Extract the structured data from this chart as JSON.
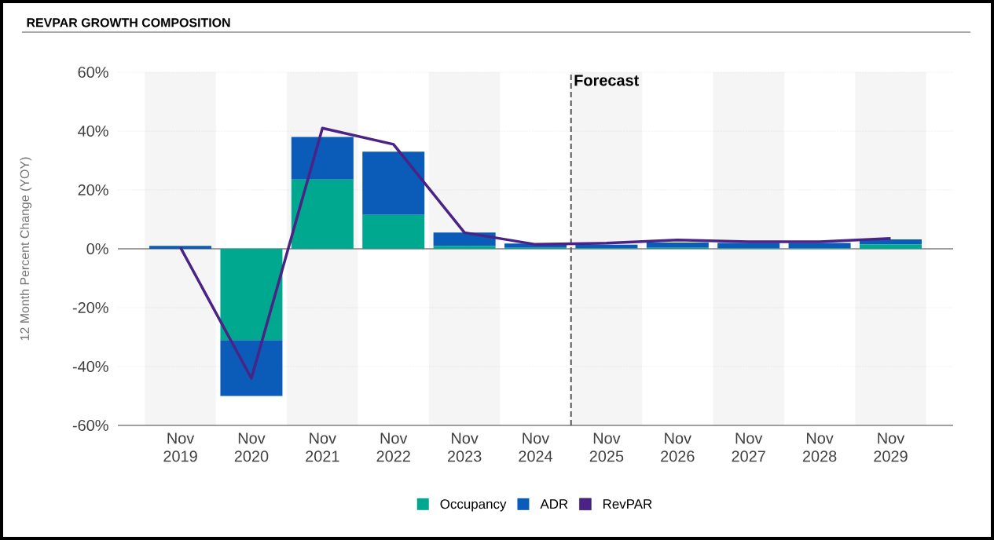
{
  "chart_data": {
    "type": "bar",
    "title": "REVPAR GROWTH COMPOSITION",
    "ylabel": "12 Month Percent Change (YOY)",
    "categories": [
      "Nov 2019",
      "Nov 2020",
      "Nov 2021",
      "Nov 2022",
      "Nov 2023",
      "Nov 2024",
      "Nov 2025",
      "Nov 2026",
      "Nov 2027",
      "Nov 2028",
      "Nov 2029"
    ],
    "stacked": true,
    "series": [
      {
        "name": "Occupancy",
        "color": "#00a88f",
        "values": [
          0,
          -31,
          23.5,
          11.5,
          1,
          0.3,
          0.2,
          0.3,
          0.2,
          0.2,
          1.5
        ]
      },
      {
        "name": "ADR",
        "color": "#0a5cb8",
        "values": [
          1,
          -19,
          14.5,
          21.5,
          4.5,
          1.5,
          1.2,
          1.8,
          1.8,
          1.8,
          1.7
        ]
      },
      {
        "name": "RevPAR",
        "type": "line",
        "color": "#4b2285",
        "values": [
          0.5,
          -44,
          41,
          35.5,
          5.5,
          1.5,
          1.9,
          3,
          2.4,
          2.4,
          3.5
        ]
      }
    ],
    "ylim": [
      -60,
      60
    ],
    "yticks": [
      {
        "value": -60,
        "label": "-60%"
      },
      {
        "value": -40,
        "label": "-40%"
      },
      {
        "value": -20,
        "label": "-20%"
      },
      {
        "value": 0,
        "label": "0%"
      },
      {
        "value": 20,
        "label": "20%"
      },
      {
        "value": 40,
        "label": "40%"
      },
      {
        "value": 60,
        "label": "60%"
      }
    ],
    "grid": "y",
    "legend": "bottom",
    "bands": [
      {
        "axis": "x",
        "from": "Nov 2019",
        "to": "Nov 2019",
        "color": "#f5f5f5"
      },
      {
        "axis": "x",
        "from": "Nov 2021",
        "to": "Nov 2021",
        "color": "#f5f5f5"
      },
      {
        "axis": "x",
        "from": "Nov 2023",
        "to": "Nov 2023",
        "color": "#f5f5f5"
      },
      {
        "axis": "x",
        "from": "Nov 2025",
        "to": "Nov 2025",
        "color": "#f5f5f5"
      },
      {
        "axis": "x",
        "from": "Nov 2027",
        "to": "Nov 2027",
        "color": "#f5f5f5"
      },
      {
        "axis": "x",
        "from": "Nov 2029",
        "to": "Nov 2029",
        "color": "#f5f5f5"
      }
    ],
    "ref_lines": [
      {
        "axis": "x",
        "value": "Nov 2025",
        "label": "Forecast",
        "color": "#555555",
        "line_style": "dashed"
      },
      {
        "axis": "y",
        "value": 0,
        "color": "#808080",
        "line_style": "solid"
      }
    ]
  }
}
